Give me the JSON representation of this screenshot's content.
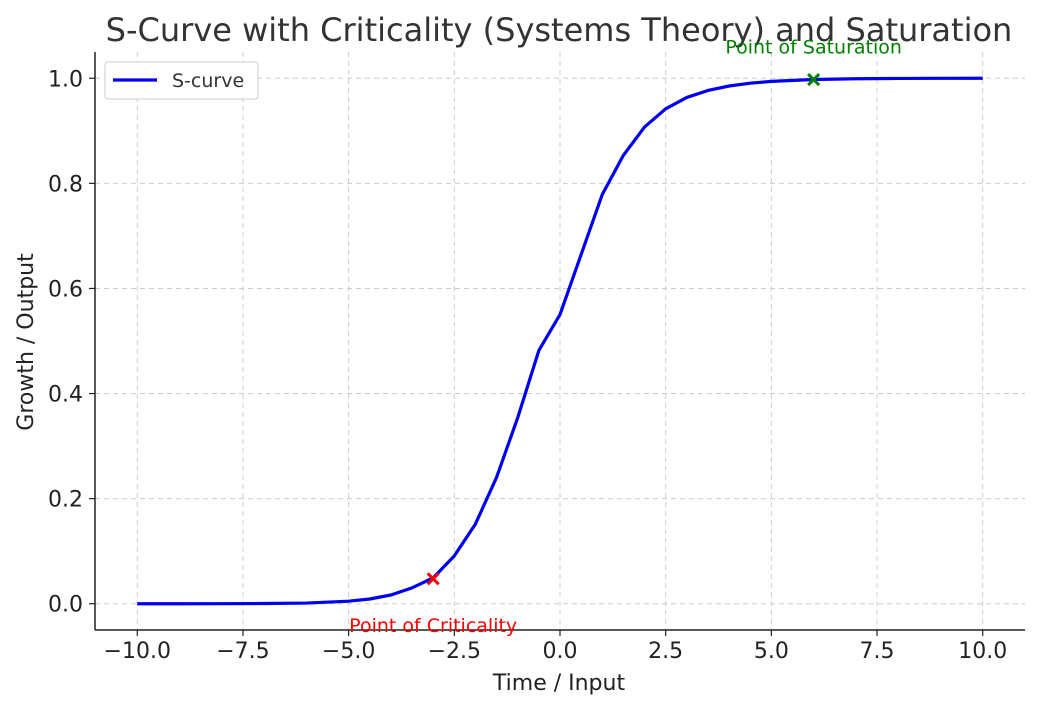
{
  "chart_data": {
    "type": "line",
    "title": "S-Curve with Criticality (Systems Theory) and Saturation",
    "xlabel": "Time / Input",
    "ylabel": "Growth / Output",
    "xlim": [
      -11,
      11
    ],
    "ylim": [
      -0.05,
      1.05
    ],
    "x_ticks": [
      -10.0,
      -7.5,
      -5.0,
      -2.5,
      0.0,
      2.5,
      5.0,
      7.5,
      10.0
    ],
    "x_tick_labels": [
      "−10.0",
      "−7.5",
      "−5.0",
      "−2.5",
      "0.0",
      "2.5",
      "5.0",
      "7.5",
      "10.0"
    ],
    "y_ticks": [
      0.0,
      0.2,
      0.4,
      0.6,
      0.8,
      1.0
    ],
    "y_tick_labels": [
      "0.0",
      "0.2",
      "0.4",
      "0.6",
      "0.8",
      "1.0"
    ],
    "grid": true,
    "legend_position": "top-left",
    "series": [
      {
        "name": "S-curve",
        "color": "#0000ee",
        "x": [
          -10,
          -9,
          -8,
          -7,
          -6,
          -5,
          -4.5,
          -4,
          -3.5,
          -3,
          -2.5,
          -2,
          -1.5,
          -1,
          -0.5,
          0,
          0.5,
          1,
          1.5,
          2,
          2.5,
          3,
          3.5,
          4,
          4.5,
          5,
          6,
          7,
          8,
          9,
          10
        ],
        "y": [
          0.0,
          0.0,
          0.0001,
          0.0004,
          0.0013,
          0.0048,
          0.009,
          0.0166,
          0.0302,
          0.0492,
          0.091,
          0.1518,
          0.2406,
          0.3542,
          0.482,
          0.5503,
          0.6646,
          0.7788,
          0.8534,
          0.9073,
          0.9419,
          0.9635,
          0.9768,
          0.9853,
          0.9906,
          0.9941,
          0.9976,
          0.9991,
          0.9997,
          0.9999,
          1.0
        ]
      }
    ],
    "annotations": [
      {
        "label": "Point of Criticality",
        "x": -3,
        "y": 0.0474,
        "marker": "x",
        "color": "#ff0000",
        "text_position": "below"
      },
      {
        "label": "Point of Saturation",
        "x": 6,
        "y": 0.9975,
        "marker": "x",
        "color": "#008000",
        "text_position": "above"
      }
    ]
  }
}
